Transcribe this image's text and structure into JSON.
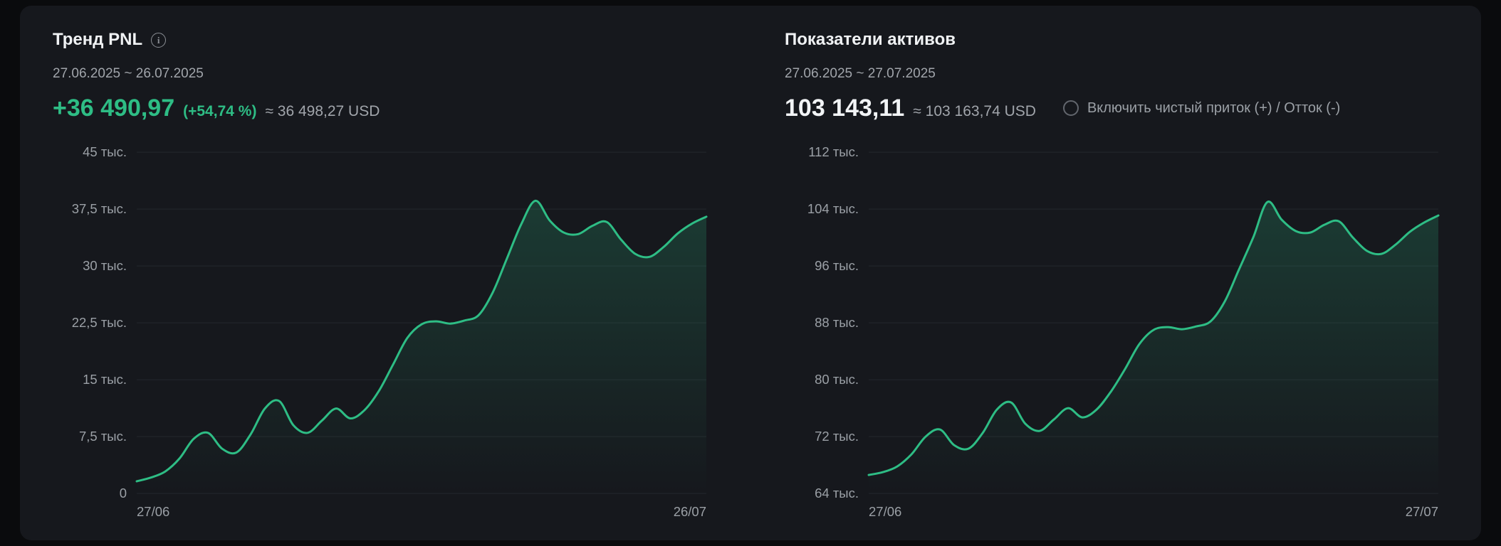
{
  "theme": {
    "background": "#0a0b0d",
    "card": "#16181d",
    "green": "#2ebd85",
    "text": "#f0f2f4",
    "muted": "#a1a5ab",
    "grid": "#24272e"
  },
  "icons": {
    "info": "i"
  },
  "pnl": {
    "title": "Тренд PNL",
    "date_range": "27.06.2025 ~ 26.07.2025",
    "value": "+36 490,97",
    "percent": "(+54,74 %)",
    "approx": "≈ 36 498,27 USD"
  },
  "assets": {
    "title": "Показатели активов",
    "date_range": "27.06.2025 ~ 27.07.2025",
    "value": "103 143,11",
    "approx": "≈ 103 163,74 USD",
    "toggle_label": "Включить чистый приток (+) / Отток (-)"
  },
  "chart_data": [
    {
      "type": "area",
      "title": "Тренд PNL",
      "unit": "тыс.",
      "ylim": [
        0,
        45
      ],
      "yticks": [
        {
          "value": 45,
          "label": "45 тыс."
        },
        {
          "value": 37.5,
          "label": "37,5 тыс."
        },
        {
          "value": 30,
          "label": "30 тыс."
        },
        {
          "value": 22.5,
          "label": "22,5 тыс."
        },
        {
          "value": 15,
          "label": "15 тыс."
        },
        {
          "value": 7.5,
          "label": "7,5 тыс."
        },
        {
          "value": 0,
          "label": "0"
        }
      ],
      "xticks": [
        "27/06",
        "26/07"
      ],
      "values": [
        1.6,
        2.1,
        2.9,
        4.6,
        7.2,
        8.0,
        5.9,
        5.4,
        7.8,
        11.2,
        12.2,
        9.0,
        8.0,
        9.6,
        11.2,
        9.9,
        11.0,
        13.5,
        17.0,
        20.5,
        22.3,
        22.7,
        22.4,
        22.8,
        23.5,
        26.5,
        31.0,
        35.5,
        38.6,
        36.0,
        34.4,
        34.2,
        35.3,
        35.8,
        33.5,
        31.6,
        31.2,
        32.5,
        34.3,
        35.6,
        36.5
      ]
    },
    {
      "type": "area",
      "title": "Показатели активов",
      "unit": "тыс.",
      "ylim": [
        64,
        112
      ],
      "yticks": [
        {
          "value": 112,
          "label": "112 тыс."
        },
        {
          "value": 104,
          "label": "104 тыс."
        },
        {
          "value": 96,
          "label": "96 тыс."
        },
        {
          "value": 88,
          "label": "88 тыс."
        },
        {
          "value": 80,
          "label": "80 тыс."
        },
        {
          "value": 72,
          "label": "72 тыс."
        },
        {
          "value": 64,
          "label": "64 тыс."
        }
      ],
      "xticks": [
        "27/06",
        "27/07"
      ],
      "values": [
        66.6,
        67.0,
        67.8,
        69.5,
        72.0,
        73.0,
        70.8,
        70.3,
        72.5,
        75.8,
        76.8,
        73.8,
        72.8,
        74.4,
        76.0,
        74.7,
        75.8,
        78.3,
        81.5,
        85.0,
        87.0,
        87.4,
        87.1,
        87.5,
        88.2,
        91.0,
        95.5,
        100.0,
        105.0,
        102.5,
        100.9,
        100.7,
        101.8,
        102.3,
        100.0,
        98.1,
        97.7,
        99.0,
        100.8,
        102.1,
        103.1
      ]
    }
  ]
}
